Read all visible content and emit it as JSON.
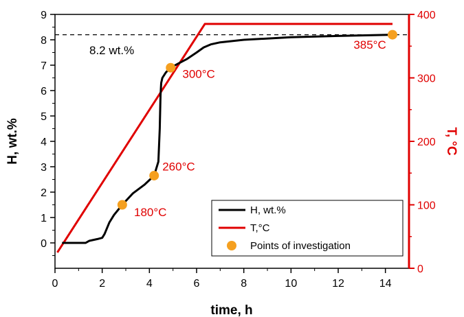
{
  "chart_data": {
    "type": "line",
    "xlabel": "time, h",
    "ylabel_left": "H, wt.%",
    "ylabel_right": "T, °C",
    "xlim": [
      0,
      15
    ],
    "ylim_left": [
      -1,
      9
    ],
    "ylim_right": [
      0,
      400
    ],
    "x_ticks": [
      0,
      2,
      4,
      6,
      8,
      10,
      12,
      14
    ],
    "y_left_ticks": [
      0,
      1,
      2,
      3,
      4,
      5,
      6,
      7,
      8,
      9
    ],
    "y_right_ticks": [
      0,
      100,
      200,
      300,
      400
    ],
    "grid": false,
    "legend_position": "bottom-right",
    "colors": {
      "h": "#000000",
      "t": "#e00000",
      "points": "#f5a020",
      "right_axis": "#e00000",
      "reference": "#000000"
    },
    "series": [
      {
        "name": "H, wt.%",
        "axis": "left",
        "x": [
          0.3,
          1.3,
          1.45,
          1.8,
          2.0,
          2.1,
          2.3,
          2.5,
          2.85,
          3.3,
          3.8,
          4.2,
          4.38,
          4.44,
          4.47,
          4.5,
          4.55,
          4.7,
          4.9,
          5.2,
          5.6,
          6.0,
          6.3,
          6.6,
          7.0,
          8.0,
          10.0,
          12.0,
          14.3
        ],
        "values": [
          0.0,
          0.0,
          0.08,
          0.15,
          0.2,
          0.35,
          0.8,
          1.1,
          1.5,
          1.95,
          2.3,
          2.65,
          3.2,
          4.5,
          5.8,
          6.3,
          6.5,
          6.72,
          6.9,
          7.05,
          7.25,
          7.5,
          7.7,
          7.82,
          7.9,
          8.0,
          8.1,
          8.15,
          8.2
        ]
      },
      {
        "name": "T,°C",
        "axis": "right",
        "x": [
          0.1,
          6.35,
          14.3
        ],
        "values": [
          25,
          385,
          385
        ]
      },
      {
        "name": "Points of investigation",
        "axis": "left",
        "x": [
          2.85,
          4.2,
          4.9,
          14.3
        ],
        "values": [
          1.5,
          2.65,
          6.9,
          8.2
        ]
      }
    ],
    "reference_line": {
      "y": 8.2,
      "axis": "left",
      "label": "8.2 wt.%"
    },
    "annotations": [
      {
        "text": "180°C",
        "x": 3.35,
        "y": 1.05
      },
      {
        "text": "260°C",
        "x": 4.55,
        "y": 2.85
      },
      {
        "text": "300°C",
        "x": 5.4,
        "y": 6.5
      },
      {
        "text": "385°C",
        "x": 12.65,
        "y": 7.65
      }
    ]
  }
}
